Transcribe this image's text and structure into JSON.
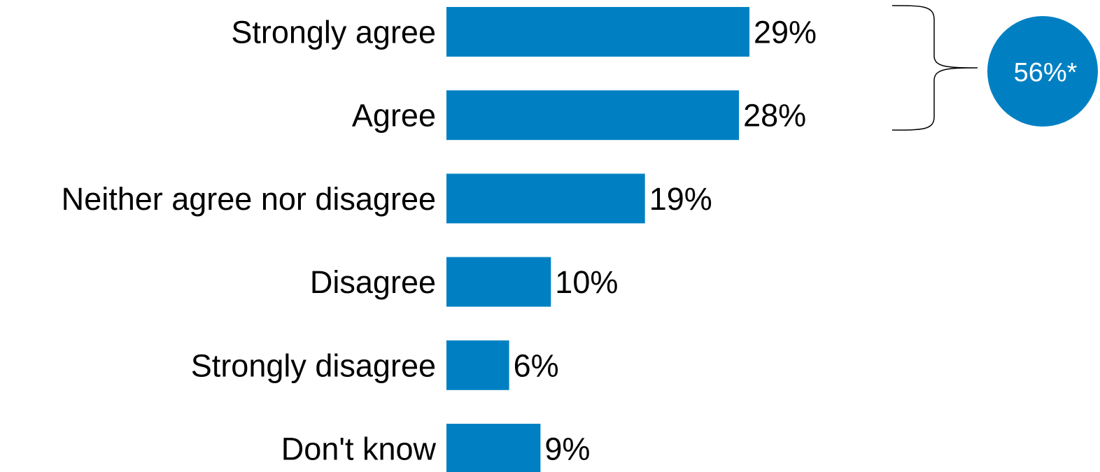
{
  "chart_data": {
    "type": "bar",
    "orientation": "horizontal",
    "categories": [
      "Strongly agree",
      "Agree",
      "Neither agree nor disagree",
      "Disagree",
      "Strongly disagree",
      "Don't know"
    ],
    "values": [
      29,
      28,
      19,
      10,
      6,
      9
    ],
    "value_labels": [
      "29%",
      "28%",
      "19%",
      "10%",
      "6%",
      "9%"
    ],
    "xlim": [
      0,
      29
    ],
    "grid": false,
    "bar_color": "#0080C3",
    "callout": {
      "text": "56%*",
      "groups": [
        "Strongly agree",
        "Agree"
      ],
      "color": "#0080C3"
    }
  }
}
